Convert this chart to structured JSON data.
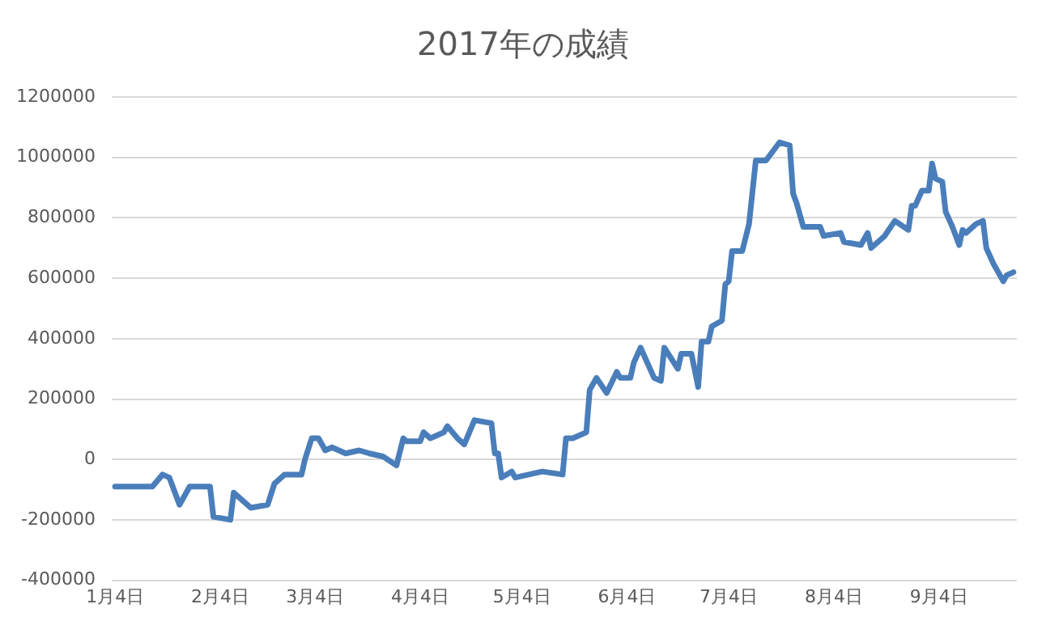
{
  "chart_data": {
    "type": "line",
    "title": "2017年の成績",
    "x": [
      "2017-01-04",
      "2017-01-15",
      "2017-01-18",
      "2017-01-20",
      "2017-01-23",
      "2017-01-26",
      "2017-02-01",
      "2017-02-02",
      "2017-02-07",
      "2017-02-08",
      "2017-02-13",
      "2017-02-18",
      "2017-02-20",
      "2017-02-23",
      "2017-02-28",
      "2017-03-01",
      "2017-03-03",
      "2017-03-05",
      "2017-03-07",
      "2017-03-09",
      "2017-03-13",
      "2017-03-17",
      "2017-03-20",
      "2017-03-24",
      "2017-03-28",
      "2017-03-30",
      "2017-03-31",
      "2017-04-04",
      "2017-04-05",
      "2017-04-07",
      "2017-04-11",
      "2017-04-12",
      "2017-04-15",
      "2017-04-17",
      "2017-04-20",
      "2017-04-25",
      "2017-04-26",
      "2017-04-27",
      "2017-04-28",
      "2017-05-01",
      "2017-05-02",
      "2017-05-10",
      "2017-05-16",
      "2017-05-17",
      "2017-05-19",
      "2017-05-23",
      "2017-05-24",
      "2017-05-26",
      "2017-05-29",
      "2017-06-01",
      "2017-06-02",
      "2017-06-05",
      "2017-06-06",
      "2017-06-08",
      "2017-06-12",
      "2017-06-14",
      "2017-06-15",
      "2017-06-19",
      "2017-06-20",
      "2017-06-23",
      "2017-06-25",
      "2017-06-26",
      "2017-06-28",
      "2017-06-29",
      "2017-07-02",
      "2017-07-03",
      "2017-07-04",
      "2017-07-05",
      "2017-07-08",
      "2017-07-10",
      "2017-07-12",
      "2017-07-15",
      "2017-07-17",
      "2017-07-19",
      "2017-07-22",
      "2017-07-23",
      "2017-07-24",
      "2017-07-26",
      "2017-07-31",
      "2017-08-01",
      "2017-08-06",
      "2017-08-07",
      "2017-08-12",
      "2017-08-14",
      "2017-08-15",
      "2017-08-19",
      "2017-08-22",
      "2017-08-26",
      "2017-08-27",
      "2017-08-28",
      "2017-08-30",
      "2017-09-01",
      "2017-09-02",
      "2017-09-03",
      "2017-09-05",
      "2017-09-06",
      "2017-09-08",
      "2017-09-10",
      "2017-09-11",
      "2017-09-12",
      "2017-09-15",
      "2017-09-17",
      "2017-09-18",
      "2017-09-20",
      "2017-09-23",
      "2017-09-24",
      "2017-09-26"
    ],
    "series": [
      {
        "color": "#4a7ebb",
        "values": [
          -90000,
          -90000,
          -50000,
          -60000,
          -150000,
          -90000,
          -90000,
          -190000,
          -200000,
          -110000,
          -160000,
          -150000,
          -80000,
          -50000,
          -50000,
          0,
          70000,
          70000,
          30000,
          40000,
          20000,
          30000,
          20000,
          10000,
          -20000,
          70000,
          60000,
          60000,
          90000,
          70000,
          90000,
          110000,
          70000,
          50000,
          130000,
          120000,
          20000,
          20000,
          -60000,
          -40000,
          -60000,
          -40000,
          -50000,
          70000,
          70000,
          90000,
          230000,
          270000,
          220000,
          290000,
          270000,
          270000,
          320000,
          370000,
          270000,
          260000,
          370000,
          300000,
          350000,
          350000,
          240000,
          390000,
          390000,
          440000,
          460000,
          580000,
          590000,
          690000,
          690000,
          780000,
          990000,
          990000,
          1020000,
          1050000,
          1040000,
          880000,
          850000,
          770000,
          770000,
          740000,
          750000,
          720000,
          710000,
          750000,
          700000,
          740000,
          790000,
          760000,
          840000,
          840000,
          890000,
          890000,
          980000,
          930000,
          920000,
          820000,
          770000,
          710000,
          760000,
          750000,
          780000,
          790000,
          700000,
          650000,
          590000,
          610000,
          620000
        ]
      }
    ],
    "xlim": [
      "2017-01-03",
      "2017-09-27"
    ],
    "xticks": [
      {
        "value": "2017-01-04",
        "label": "1月4日"
      },
      {
        "value": "2017-02-04",
        "label": "2月4日"
      },
      {
        "value": "2017-03-04",
        "label": "3月4日"
      },
      {
        "value": "2017-04-04",
        "label": "4月4日"
      },
      {
        "value": "2017-05-04",
        "label": "5月4日"
      },
      {
        "value": "2017-06-04",
        "label": "6月4日"
      },
      {
        "value": "2017-07-04",
        "label": "7月4日"
      },
      {
        "value": "2017-08-04",
        "label": "8月4日"
      },
      {
        "value": "2017-09-04",
        "label": "9月4日"
      }
    ],
    "ylim": [
      -400000,
      1200000
    ],
    "yticks": [
      -400000,
      -200000,
      0,
      200000,
      400000,
      600000,
      800000,
      1000000,
      1200000
    ],
    "grid": "y",
    "legend": false,
    "marker": "none",
    "line_style": "solid"
  }
}
